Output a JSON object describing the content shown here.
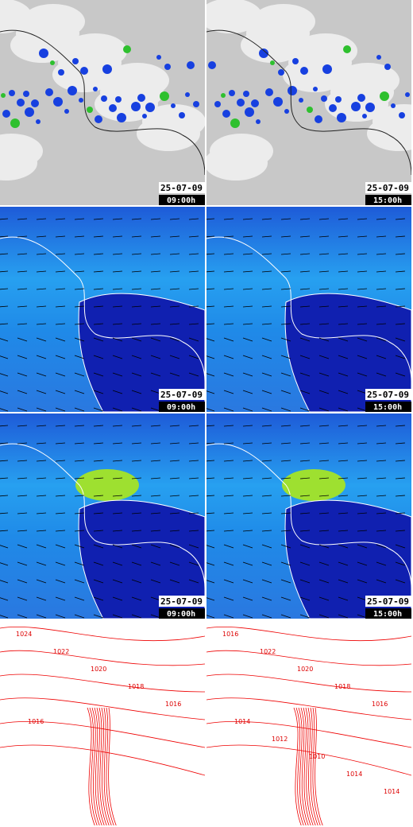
{
  "panels": [
    {
      "date": "25-07-09",
      "time": "09:00h"
    },
    {
      "date": "25-07-09",
      "time": "15:00h"
    },
    {
      "date": "25-07-09",
      "time": "09:00h"
    },
    {
      "date": "25-07-09",
      "time": "15:00h"
    },
    {
      "date": "25-07-09",
      "time": "09:00h"
    },
    {
      "date": "25-07-09",
      "time": "15:00h"
    }
  ],
  "isobars_left": [
    "1024",
    "1022",
    "1020",
    "1018",
    "1016",
    "1016"
  ],
  "isobars_right": [
    "1016",
    "1022",
    "1020",
    "1018",
    "1016",
    "1014",
    "1012",
    "1010",
    "1014",
    "1014"
  ]
}
